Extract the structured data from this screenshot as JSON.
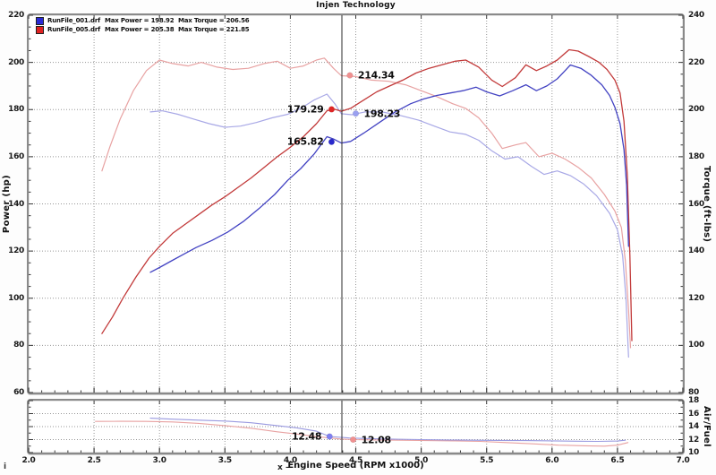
{
  "page": {
    "title": "Injen Technology"
  },
  "misc": {
    "info_glyph": "i"
  },
  "theme": {
    "grid": "#979797",
    "tick": "#3a3a3a",
    "cursor": "#2b2b2b",
    "frame": "#8a8a8a",
    "plot_bg": "#ffffff"
  },
  "legend": {
    "runs": [
      {
        "file": "RunFile_001.drf",
        "max_power_label": "Max Power = 198.92",
        "max_torque_label": "Max Torque = 206.56",
        "color": "#2b2bd6"
      },
      {
        "file": "RunFile_005.drf",
        "max_power_label": "Max Power = 205.38",
        "max_torque_label": "Max Torque = 221.85",
        "color": "#e02222"
      }
    ]
  },
  "axes": {
    "x": {
      "title": "Engine Speed (RPM x1000)",
      "title_prefix": "x –",
      "min": 2.0,
      "max": 7.0,
      "major": 0.5,
      "minor": 0.1,
      "tick_labels": [
        "2.0",
        "2.5",
        "3.0",
        "3.5",
        "4.0",
        "4.5",
        "5.0",
        "5.5",
        "6.0",
        "6.5",
        "7.0"
      ]
    },
    "power": {
      "title": "Power (hp)",
      "min": 60,
      "max": 220,
      "major": 20,
      "minor": 5,
      "tick_labels": [
        "220",
        "200",
        "180",
        "160",
        "140",
        "120",
        "100",
        "80",
        "60"
      ]
    },
    "torque": {
      "title": "Torque (ft-lbs)",
      "min": 80,
      "max": 240,
      "major": 20,
      "minor": 5,
      "tick_labels": [
        "240",
        "220",
        "200",
        "180",
        "160",
        "140",
        "120",
        "100",
        "80"
      ]
    },
    "af": {
      "title": "Air/Fuel",
      "min": 10,
      "max": 18,
      "major": 2,
      "minor": 1,
      "tick_labels": [
        "18",
        "16",
        "14",
        "12",
        "10"
      ]
    }
  },
  "cursor": {
    "rpm": 4.394
  },
  "chart_data": {
    "type": "line",
    "title": "Injen Technology",
    "xlabel": "Engine Speed (RPM x1000)",
    "x_range": [
      2.0,
      7.0
    ],
    "power_range": [
      60,
      220
    ],
    "torque_range": [
      80,
      240
    ],
    "af_range": [
      10,
      18
    ],
    "grid": "dotted",
    "series": [
      {
        "id": "torque_005",
        "name": "RunFile_005 Torque",
        "panel": "main",
        "axis": "torque",
        "color": "#e8a2a2",
        "width": 1.2,
        "points": [
          [
            2.56,
            174
          ],
          [
            2.62,
            184
          ],
          [
            2.7,
            196
          ],
          [
            2.8,
            208
          ],
          [
            2.9,
            216.5
          ],
          [
            3.0,
            221
          ],
          [
            3.1,
            219.5
          ],
          [
            3.22,
            218.5
          ],
          [
            3.32,
            220
          ],
          [
            3.44,
            218
          ],
          [
            3.56,
            217
          ],
          [
            3.68,
            217.5
          ],
          [
            3.8,
            219.5
          ],
          [
            3.9,
            220.5
          ],
          [
            4.0,
            217.5
          ],
          [
            4.1,
            218.5
          ],
          [
            4.2,
            221
          ],
          [
            4.26,
            221.85
          ],
          [
            4.33,
            217.5
          ],
          [
            4.39,
            214.34
          ],
          [
            4.5,
            214
          ],
          [
            4.62,
            212.5
          ],
          [
            4.75,
            212
          ],
          [
            4.88,
            210.5
          ],
          [
            5.0,
            208
          ],
          [
            5.12,
            205.5
          ],
          [
            5.24,
            202.5
          ],
          [
            5.34,
            200.5
          ],
          [
            5.44,
            196.5
          ],
          [
            5.54,
            190
          ],
          [
            5.62,
            183.5
          ],
          [
            5.72,
            185
          ],
          [
            5.8,
            186
          ],
          [
            5.9,
            180
          ],
          [
            6.0,
            181.5
          ],
          [
            6.1,
            179
          ],
          [
            6.2,
            175.5
          ],
          [
            6.3,
            171
          ],
          [
            6.4,
            164
          ],
          [
            6.48,
            157
          ],
          [
            6.53,
            150
          ],
          [
            6.56,
            136
          ],
          [
            6.585,
            115
          ],
          [
            6.6,
            99
          ]
        ]
      },
      {
        "id": "torque_001",
        "name": "RunFile_001 Torque",
        "panel": "main",
        "axis": "torque",
        "color": "#a8a8e6",
        "width": 1.2,
        "points": [
          [
            2.93,
            199
          ],
          [
            3.02,
            199.5
          ],
          [
            3.14,
            198
          ],
          [
            3.26,
            196
          ],
          [
            3.38,
            194
          ],
          [
            3.5,
            192.5
          ],
          [
            3.62,
            193
          ],
          [
            3.74,
            194.5
          ],
          [
            3.86,
            196.5
          ],
          [
            3.98,
            198
          ],
          [
            4.08,
            200.5
          ],
          [
            4.18,
            204
          ],
          [
            4.28,
            206.56
          ],
          [
            4.34,
            202.5
          ],
          [
            4.39,
            198.23
          ],
          [
            4.47,
            197.8
          ],
          [
            4.57,
            199
          ],
          [
            4.7,
            199
          ],
          [
            4.84,
            197.5
          ],
          [
            4.98,
            195.5
          ],
          [
            5.1,
            193
          ],
          [
            5.22,
            190.5
          ],
          [
            5.34,
            189.5
          ],
          [
            5.44,
            187
          ],
          [
            5.54,
            182.5
          ],
          [
            5.64,
            179
          ],
          [
            5.74,
            180
          ],
          [
            5.84,
            176
          ],
          [
            5.94,
            172.5
          ],
          [
            6.04,
            174
          ],
          [
            6.14,
            172
          ],
          [
            6.24,
            168.5
          ],
          [
            6.34,
            163.5
          ],
          [
            6.44,
            156
          ],
          [
            6.5,
            149
          ],
          [
            6.54,
            138
          ],
          [
            6.565,
            120
          ],
          [
            6.585,
            95
          ]
        ]
      },
      {
        "id": "power_005",
        "name": "RunFile_005 Power",
        "panel": "main",
        "axis": "power",
        "color": "#c23a3a",
        "width": 1.3,
        "points": [
          [
            2.56,
            85
          ],
          [
            2.64,
            92
          ],
          [
            2.72,
            100
          ],
          [
            2.82,
            109
          ],
          [
            2.92,
            117
          ],
          [
            3.0,
            122
          ],
          [
            3.1,
            127.5
          ],
          [
            3.2,
            131.5
          ],
          [
            3.3,
            135.5
          ],
          [
            3.4,
            139.5
          ],
          [
            3.5,
            143
          ],
          [
            3.6,
            147
          ],
          [
            3.7,
            151
          ],
          [
            3.8,
            155.5
          ],
          [
            3.9,
            160
          ],
          [
            4.0,
            164
          ],
          [
            4.1,
            168.5
          ],
          [
            4.2,
            174
          ],
          [
            4.28,
            179.5
          ],
          [
            4.33,
            180.3
          ],
          [
            4.39,
            179.29
          ],
          [
            4.46,
            180.5
          ],
          [
            4.56,
            184
          ],
          [
            4.66,
            187.5
          ],
          [
            4.76,
            190
          ],
          [
            4.86,
            192.5
          ],
          [
            4.96,
            195.5
          ],
          [
            5.06,
            197.5
          ],
          [
            5.16,
            199
          ],
          [
            5.26,
            200.5
          ],
          [
            5.34,
            201
          ],
          [
            5.44,
            198
          ],
          [
            5.54,
            192.5
          ],
          [
            5.62,
            189.8
          ],
          [
            5.72,
            193.5
          ],
          [
            5.8,
            199
          ],
          [
            5.88,
            196.5
          ],
          [
            5.96,
            198.5
          ],
          [
            6.04,
            201
          ],
          [
            6.13,
            205.38
          ],
          [
            6.2,
            204.8
          ],
          [
            6.28,
            202.5
          ],
          [
            6.36,
            200
          ],
          [
            6.42,
            197
          ],
          [
            6.48,
            192.5
          ],
          [
            6.52,
            187
          ],
          [
            6.55,
            175
          ],
          [
            6.575,
            152
          ],
          [
            6.595,
            118
          ],
          [
            6.61,
            82
          ]
        ]
      },
      {
        "id": "power_001",
        "name": "RunFile_001 Power",
        "panel": "main",
        "axis": "power",
        "color": "#4242c2",
        "width": 1.3,
        "points": [
          [
            2.93,
            111
          ],
          [
            3.0,
            113
          ],
          [
            3.08,
            115.5
          ],
          [
            3.18,
            118.5
          ],
          [
            3.28,
            121.5
          ],
          [
            3.4,
            124.5
          ],
          [
            3.52,
            128
          ],
          [
            3.64,
            132.5
          ],
          [
            3.76,
            138
          ],
          [
            3.88,
            144
          ],
          [
            3.98,
            150
          ],
          [
            4.08,
            155
          ],
          [
            4.18,
            161
          ],
          [
            4.28,
            168.5
          ],
          [
            4.33,
            167.5
          ],
          [
            4.39,
            165.82
          ],
          [
            4.46,
            166.5
          ],
          [
            4.56,
            170
          ],
          [
            4.68,
            174.5
          ],
          [
            4.8,
            179
          ],
          [
            4.92,
            182.5
          ],
          [
            5.02,
            184.5
          ],
          [
            5.12,
            186
          ],
          [
            5.22,
            187
          ],
          [
            5.32,
            188
          ],
          [
            5.42,
            189.5
          ],
          [
            5.5,
            187.5
          ],
          [
            5.6,
            185.8
          ],
          [
            5.7,
            188
          ],
          [
            5.8,
            190.5
          ],
          [
            5.88,
            188
          ],
          [
            5.96,
            190
          ],
          [
            6.04,
            193
          ],
          [
            6.1,
            196.5
          ],
          [
            6.14,
            198.92
          ],
          [
            6.22,
            197.5
          ],
          [
            6.3,
            194.5
          ],
          [
            6.38,
            190.5
          ],
          [
            6.44,
            186
          ],
          [
            6.48,
            181
          ],
          [
            6.52,
            174
          ],
          [
            6.55,
            163
          ],
          [
            6.57,
            148
          ],
          [
            6.585,
            122
          ]
        ]
      },
      {
        "id": "af_005",
        "name": "RunFile_005 Air/Fuel",
        "panel": "af",
        "axis": "af",
        "color": "#e8a2a2",
        "width": 1.1,
        "points": [
          [
            2.51,
            14.8
          ],
          [
            2.7,
            14.82
          ],
          [
            2.9,
            14.8
          ],
          [
            3.1,
            14.72
          ],
          [
            3.3,
            14.5
          ],
          [
            3.5,
            14.15
          ],
          [
            3.7,
            13.75
          ],
          [
            3.9,
            13.2
          ],
          [
            4.05,
            12.85
          ],
          [
            4.2,
            12.45
          ],
          [
            4.39,
            12.08
          ],
          [
            4.48,
            12.0
          ],
          [
            4.65,
            11.95
          ],
          [
            4.85,
            11.9
          ],
          [
            5.05,
            11.85
          ],
          [
            5.25,
            11.8
          ],
          [
            5.45,
            11.72
          ],
          [
            5.65,
            11.55
          ],
          [
            5.85,
            11.35
          ],
          [
            6.05,
            11.15
          ],
          [
            6.25,
            11.05
          ],
          [
            6.4,
            11.0
          ],
          [
            6.5,
            11.15
          ],
          [
            6.58,
            11.55
          ]
        ]
      },
      {
        "id": "af_001",
        "name": "RunFile_001 Air/Fuel",
        "panel": "af",
        "axis": "af",
        "color": "#9a9ae0",
        "width": 1.1,
        "points": [
          [
            2.93,
            15.3
          ],
          [
            3.1,
            15.15
          ],
          [
            3.3,
            15.0
          ],
          [
            3.5,
            14.85
          ],
          [
            3.7,
            14.6
          ],
          [
            3.9,
            14.15
          ],
          [
            4.05,
            13.8
          ],
          [
            4.2,
            13.3
          ],
          [
            4.3,
            12.48
          ],
          [
            4.45,
            12.25
          ],
          [
            4.6,
            12.15
          ],
          [
            4.8,
            12.05
          ],
          [
            5.0,
            12.0
          ],
          [
            5.2,
            11.95
          ],
          [
            5.4,
            11.9
          ],
          [
            5.6,
            11.88
          ],
          [
            5.8,
            11.85
          ],
          [
            6.0,
            11.8
          ],
          [
            6.2,
            11.75
          ],
          [
            6.35,
            11.72
          ],
          [
            6.5,
            11.78
          ],
          [
            6.56,
            11.9
          ]
        ]
      }
    ],
    "markers": [
      {
        "label": "214.34",
        "panel": "main",
        "axis": "torque",
        "rpm": 4.455,
        "value": 214.5,
        "color": "#f09090",
        "side": "right"
      },
      {
        "label": "179.29",
        "panel": "main",
        "axis": "power",
        "rpm": 4.315,
        "value": 180.1,
        "color": "#e02525",
        "side": "left"
      },
      {
        "label": "198.23",
        "panel": "main",
        "axis": "torque",
        "rpm": 4.5,
        "value": 198.3,
        "color": "#9aa0f0",
        "side": "right"
      },
      {
        "label": "165.82",
        "panel": "main",
        "axis": "power",
        "rpm": 4.315,
        "value": 166.3,
        "color": "#2828cc",
        "side": "left"
      },
      {
        "label": "12.48",
        "panel": "af",
        "axis": "af",
        "rpm": 4.3,
        "value": 12.48,
        "color": "#8080f0",
        "side": "left"
      },
      {
        "label": "12.08",
        "panel": "af",
        "axis": "af",
        "rpm": 4.48,
        "value": 12.0,
        "color": "#f09090",
        "side": "right"
      }
    ]
  }
}
